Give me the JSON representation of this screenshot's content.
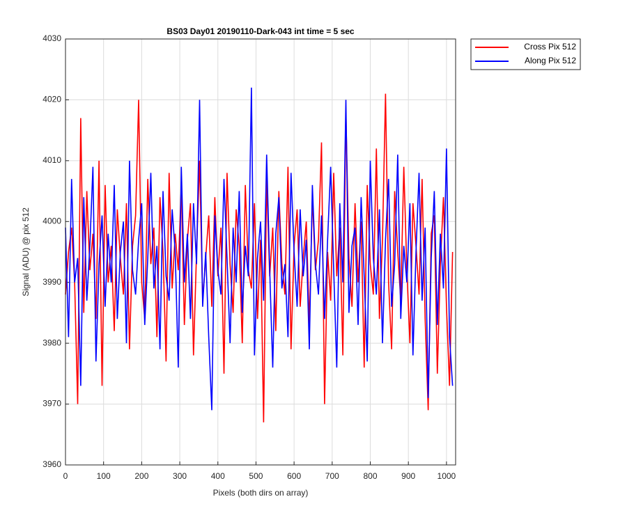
{
  "chart_data": {
    "type": "line",
    "title": "BS03 Day01 20190110-Dark-043 int time = 5 sec",
    "xlabel": "Pixels (both dirs on array)",
    "ylabel": "Signal (ADU) @ pix 512",
    "x": [
      0,
      8,
      16,
      24,
      32,
      40,
      48,
      56,
      64,
      72,
      80,
      88,
      96,
      104,
      112,
      120,
      128,
      136,
      144,
      152,
      160,
      168,
      176,
      184,
      192,
      200,
      208,
      216,
      224,
      232,
      240,
      248,
      256,
      264,
      272,
      280,
      288,
      296,
      304,
      312,
      320,
      328,
      336,
      344,
      352,
      360,
      368,
      376,
      384,
      392,
      400,
      408,
      416,
      424,
      432,
      440,
      448,
      456,
      464,
      472,
      480,
      488,
      496,
      504,
      512,
      520,
      528,
      536,
      544,
      552,
      560,
      568,
      576,
      584,
      592,
      600,
      608,
      616,
      624,
      632,
      640,
      648,
      656,
      664,
      672,
      680,
      688,
      696,
      704,
      712,
      720,
      728,
      736,
      744,
      752,
      760,
      768,
      776,
      784,
      792,
      800,
      808,
      816,
      824,
      832,
      840,
      848,
      856,
      864,
      872,
      880,
      888,
      896,
      904,
      912,
      920,
      928,
      936,
      944,
      952,
      960,
      968,
      976,
      984,
      992,
      1000,
      1008,
      1016
    ],
    "series": [
      {
        "name": "Cross Pix 512",
        "color": "#ff0000",
        "values": [
          3988,
          3995,
          3999,
          3990,
          3970,
          4017,
          3985,
          4005,
          3992,
          3998,
          3984,
          4010,
          3973,
          4006,
          3990,
          3996,
          3982,
          4002,
          3994,
          3988,
          4003,
          3979,
          3996,
          4001,
          4020,
          3990,
          3984,
          4007,
          3993,
          3999,
          3981,
          4004,
          3995,
          3977,
          4008,
          3989,
          3998,
          3992,
          4006,
          3983,
          3997,
          4003,
          3978,
          3995,
          4010,
          3987,
          3994,
          4001,
          3986,
          4004,
          3991,
          3999,
          3975,
          4008,
          3993,
          3985,
          4002,
          3996,
          3980,
          4006,
          3992,
          3989,
          4003,
          3984,
          3997,
          3967,
          4007,
          3991,
          3999,
          3982,
          4005,
          3993,
          3988,
          4009,
          3979,
          3996,
          4002,
          3986,
          3994,
          4000,
          3983,
          4004,
          3992,
          3997,
          4013,
          3970,
          3995,
          3987,
          4008,
          3991,
          3999,
          3978,
          4018,
          3994,
          3986,
          4003,
          3990,
          4000,
          3976,
          4006,
          3993,
          3988,
          4012,
          3984,
          3997,
          4021,
          3990,
          3979,
          4005,
          3995,
          3987,
          4009,
          3992,
          3980,
          4003,
          3996,
          3988,
          4007,
          3984,
          3969,
          3998,
          4001,
          3975,
          3993,
          4004,
          3986,
          3973,
          3995
        ]
      },
      {
        "name": "Along Pix 512",
        "color": "#0000ff",
        "values": [
          3999,
          3981,
          4007,
          3990,
          3994,
          3973,
          4004,
          3987,
          3996,
          4009,
          3977,
          3993,
          4001,
          3986,
          3998,
          3990,
          4006,
          3984,
          3995,
          4000,
          3980,
          4010,
          3992,
          3988,
          3997,
          4003,
          3983,
          3994,
          4008,
          3989,
          3996,
          3979,
          4005,
          3991,
          3987,
          4002,
          3995,
          3976,
          4009,
          3990,
          3998,
          3984,
          4003,
          3993,
          4020,
          3986,
          3995,
          3981,
          3969,
          4001,
          3992,
          3988,
          4007,
          3994,
          3980,
          3999,
          3990,
          4005,
          3985,
          3996,
          3991,
          4022,
          3978,
          3994,
          4000,
          3987,
          4011,
          3992,
          3976,
          3998,
          4004,
          3989,
          3993,
          3981,
          4008,
          3995,
          3986,
          4002,
          3991,
          3997,
          3979,
          4006,
          3993,
          3988,
          4001,
          3984,
          3997,
          4009,
          3992,
          3976,
          4003,
          3990,
          4020,
          3985,
          3996,
          3999,
          3983,
          4004,
          3991,
          3977,
          4010,
          3994,
          3988,
          4002,
          3980,
          3997,
          4007,
          3986,
          3993,
          4011,
          3984,
          3996,
          3990,
          4003,
          3978,
          3995,
          4008,
          3987,
          3999,
          3971,
          3994,
          4005,
          3983,
          3998,
          3989,
          4012,
          3981,
          3973
        ]
      }
    ],
    "xlim": [
      0,
      1024
    ],
    "xticks": [
      0,
      100,
      200,
      300,
      400,
      500,
      600,
      700,
      800,
      900,
      1000
    ],
    "ylim": [
      3960,
      4030
    ],
    "yticks": [
      3960,
      3970,
      3980,
      3990,
      4000,
      4010,
      4020,
      4030
    ],
    "grid": true,
    "legend": "outside-northeast"
  }
}
